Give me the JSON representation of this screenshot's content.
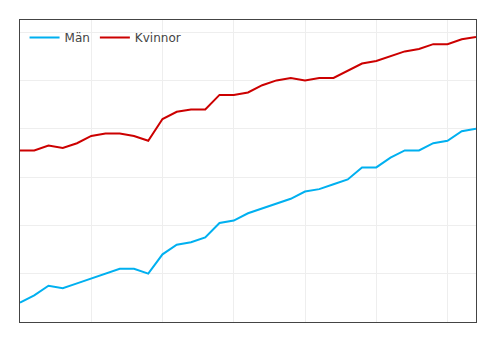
{
  "chart_data": {
    "type": "line",
    "x": [
      1980,
      1981,
      1982,
      1983,
      1984,
      1985,
      1986,
      1987,
      1988,
      1989,
      1990,
      1991,
      1992,
      1993,
      1994,
      1995,
      1996,
      1997,
      1998,
      1999,
      2000,
      2001,
      2002,
      2003,
      2004,
      2005,
      2006,
      2007,
      2008,
      2009,
      2010,
      2011,
      2012
    ],
    "series": [
      {
        "name": "Män",
        "color": "#00b0f0",
        "values": [
          72.8,
          73.1,
          73.5,
          73.4,
          73.6,
          73.8,
          74.0,
          74.2,
          74.2,
          74.0,
          74.8,
          75.2,
          75.3,
          75.5,
          76.1,
          76.2,
          76.5,
          76.7,
          76.9,
          77.1,
          77.4,
          77.5,
          77.7,
          77.9,
          78.4,
          78.4,
          78.8,
          79.1,
          79.1,
          79.4,
          79.5,
          79.9,
          80.0
        ]
      },
      {
        "name": "Kvinnor",
        "color": "#cc0000",
        "values": [
          79.1,
          79.1,
          79.3,
          79.2,
          79.4,
          79.7,
          79.8,
          79.8,
          79.7,
          79.5,
          80.4,
          80.7,
          80.8,
          80.8,
          81.4,
          81.4,
          81.5,
          81.8,
          82.0,
          82.1,
          82.0,
          82.1,
          82.1,
          82.4,
          82.7,
          82.8,
          83.0,
          83.2,
          83.3,
          83.5,
          83.5,
          83.7,
          83.8
        ]
      }
    ],
    "xlim": [
      1980,
      2012
    ],
    "ylim": [
      72.0,
      84.5
    ],
    "xticks": [
      1980,
      1985,
      1990,
      1995,
      2000,
      2005,
      2010
    ],
    "yticks": [
      72,
      74,
      76,
      78,
      80,
      82,
      84
    ],
    "grid": true,
    "legend": "upper left",
    "tick_labels": false
  }
}
